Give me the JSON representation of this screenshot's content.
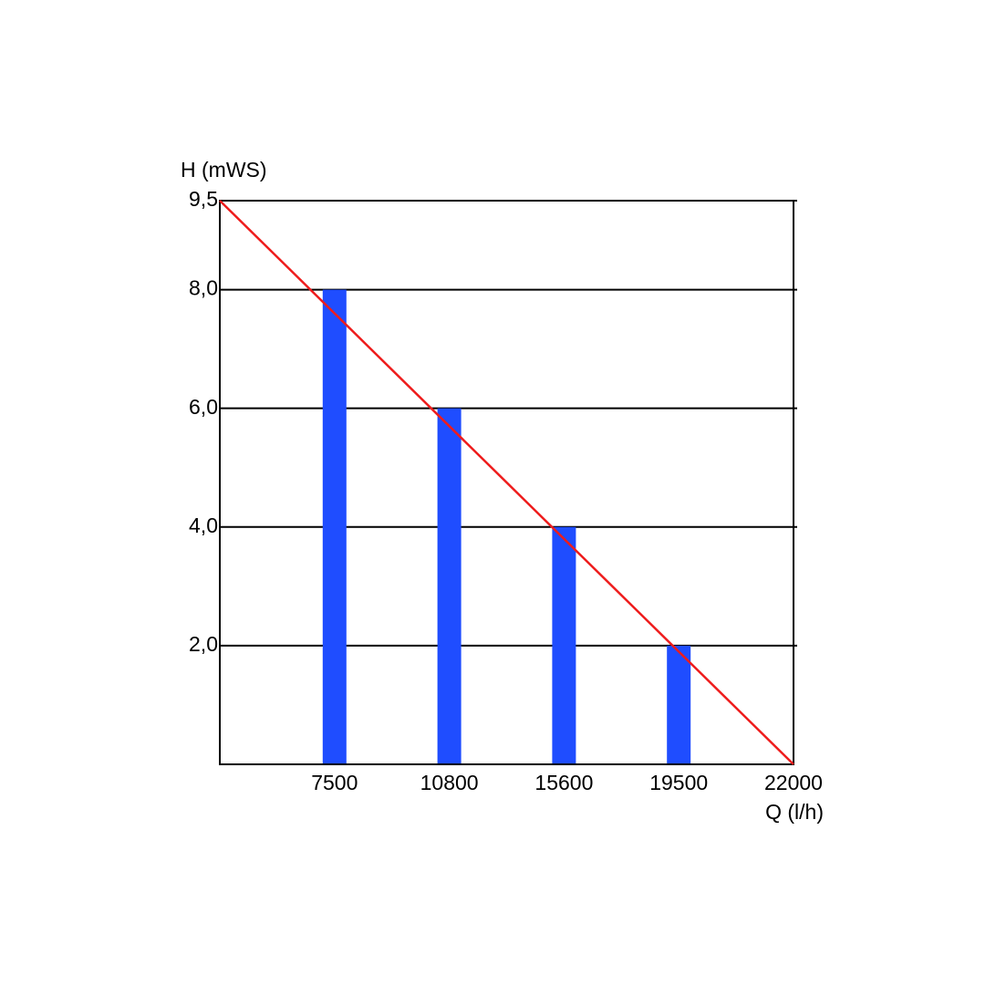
{
  "chart_data": {
    "type": "bar",
    "y_label": "H (mWS)",
    "x_label": "Q (l/h)",
    "categories": [
      7500,
      10800,
      15600,
      19500,
      22000
    ],
    "values": [
      8,
      6,
      4,
      2,
      null
    ],
    "color": "#1f4dff",
    "line": {
      "color": "#ee1c1c",
      "values": [
        9.5,
        0
      ]
    },
    "ylim": [
      0,
      9.5
    ],
    "yticks": [
      {
        "value": 2,
        "label": "2,0"
      },
      {
        "value": 4,
        "label": "4,0"
      },
      {
        "value": 6,
        "label": "6,0"
      },
      {
        "value": 8,
        "label": "8,0"
      },
      {
        "value": 9.5,
        "label": "9,5"
      }
    ],
    "grid": true
  }
}
